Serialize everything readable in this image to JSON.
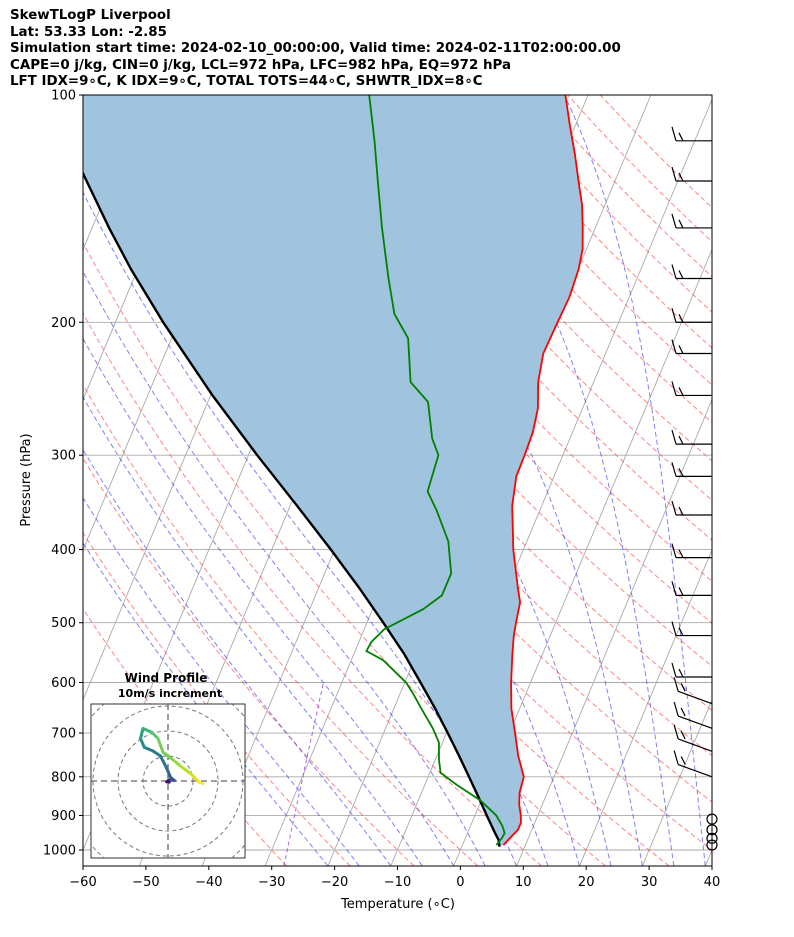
{
  "title_lines": [
    "SkewTLogP Liverpool",
    "Lat: 53.33   Lon: -2.85",
    "Simulation start time: 2024-02-10_00:00:00, Valid time: 2024-02-11T02:00:00.00",
    "CAPE=0 j/kg, CIN=0 j/kg, LCL=972 hPa, LFC=982 hPa, EQ=972 hPa",
    "LFT IDX=9∘C, K IDX=9∘C, TOTAL TOTS=44∘C, SHWTR_IDX=8∘C"
  ],
  "chart_data": {
    "type": "line",
    "subtype": "skew-T log-P diagram",
    "xlabel": "Temperature (∘C)",
    "ylabel": "Pressure (hPa)",
    "xlim": [
      -60,
      40
    ],
    "ylim": [
      1050,
      100
    ],
    "x_ticks": [
      -60,
      -50,
      -40,
      -30,
      -20,
      -10,
      0,
      10,
      20,
      30,
      40
    ],
    "x_tick_labels": [
      "−60",
      "−50",
      "−40",
      "−30",
      "−20",
      "−10",
      "0",
      "10",
      "20",
      "30",
      "40"
    ],
    "y_ticks": [
      1000,
      900,
      800,
      700,
      600,
      500,
      400,
      300,
      200,
      100
    ],
    "y_tick_labels": [
      "1000",
      "900",
      "800",
      "700",
      "600",
      "500",
      "400",
      "300",
      "200",
      "100"
    ],
    "skew_deg_per_decade": 50.3,
    "colors": {
      "temperature": "#ff0000",
      "dewpoint": "#008000",
      "parcel": "#000000",
      "fill": "#a0c4de",
      "dry_adiabat": "#ff4444",
      "moist_adiabat": "#3344ee",
      "mixing_ratio": "#8a2be2",
      "isotherm": "#aaaaaa",
      "isobar": "#aaaaaa"
    },
    "series": [
      {
        "name": "Temperature",
        "pressure": [
          985,
          960,
          940,
          920,
          900,
          870,
          840,
          800,
          750,
          700,
          650,
          600,
          550,
          520,
          500,
          470,
          450,
          400,
          350,
          320,
          300,
          280,
          260,
          240,
          220,
          200,
          185,
          170,
          160,
          150,
          140,
          130,
          120,
          110,
          100
        ],
        "temp": [
          6.5,
          7.2,
          7.8,
          7.8,
          7.3,
          6.3,
          5.6,
          5.2,
          2.9,
          0.9,
          -1.3,
          -3.1,
          -4.8,
          -5.8,
          -6.3,
          -7.0,
          -8.3,
          -11.6,
          -14.7,
          -16.0,
          -16.1,
          -16.3,
          -17.1,
          -18.8,
          -19.9,
          -19.7,
          -19.5,
          -19.9,
          -20.6,
          -22.0,
          -23.6,
          -25.8,
          -28.1,
          -30.8,
          -33.6
        ]
      },
      {
        "name": "Dewpoint",
        "pressure": [
          985,
          965,
          950,
          930,
          900,
          860,
          820,
          790,
          760,
          720,
          690,
          650,
          620,
          600,
          560,
          545,
          530,
          510,
          480,
          460,
          430,
          390,
          355,
          335,
          300,
          285,
          255,
          240,
          210,
          195,
          175,
          150,
          130,
          115,
          100
        ],
        "temp": [
          5.4,
          5.8,
          5.9,
          5.1,
          3.4,
          -0.1,
          -4.9,
          -8.3,
          -9.4,
          -10.6,
          -12.5,
          -15.6,
          -18.0,
          -19.8,
          -25.0,
          -28.2,
          -28.0,
          -26.8,
          -22.0,
          -19.9,
          -19.9,
          -22.5,
          -26.4,
          -29.1,
          -29.8,
          -31.9,
          -35.0,
          -39.1,
          -42.4,
          -46.2,
          -49.5,
          -53.9,
          -57.7,
          -60.9,
          -64.8
        ]
      },
      {
        "name": "Parcel",
        "pressure": [
          990,
          970,
          950,
          900,
          850,
          800,
          750,
          700,
          650,
          600,
          550,
          500,
          450,
          400,
          350,
          300,
          250,
          200,
          170,
          150,
          130,
          115,
          100
        ],
        "temp": [
          6.0,
          5.4,
          4.4,
          1.9,
          -0.7,
          -3.5,
          -6.5,
          -9.8,
          -13.4,
          -17.5,
          -22.0,
          -27.4,
          -33.5,
          -40.6,
          -48.9,
          -58.6,
          -69.7,
          -82.4,
          -91.1,
          -97.3,
          -104.0,
          -109.7,
          -116.0
        ]
      }
    ],
    "wind_barbs": [
      {
        "pressure": 985,
        "symbol": "calm"
      },
      {
        "pressure": 965,
        "symbol": "calm"
      },
      {
        "pressure": 940,
        "symbol": "calm"
      },
      {
        "pressure": 910,
        "symbol": "calm"
      },
      {
        "pressure": 800,
        "symbol": "barb"
      },
      {
        "pressure": 740,
        "symbol": "barb"
      },
      {
        "pressure": 690,
        "symbol": "barb"
      },
      {
        "pressure": 640,
        "symbol": "barb"
      },
      {
        "pressure": 590,
        "symbol": "barb"
      },
      {
        "pressure": 520,
        "symbol": "barb"
      },
      {
        "pressure": 460,
        "symbol": "barb"
      },
      {
        "pressure": 410,
        "symbol": "barb"
      },
      {
        "pressure": 360,
        "symbol": "barb"
      },
      {
        "pressure": 320,
        "symbol": "barb"
      },
      {
        "pressure": 290,
        "symbol": "barb"
      },
      {
        "pressure": 250,
        "symbol": "barb"
      },
      {
        "pressure": 220,
        "symbol": "barb"
      },
      {
        "pressure": 200,
        "symbol": "barb"
      },
      {
        "pressure": 175,
        "symbol": "barb"
      },
      {
        "pressure": 150,
        "symbol": "barb"
      },
      {
        "pressure": 130,
        "symbol": "barb"
      },
      {
        "pressure": 115,
        "symbol": "barb"
      }
    ],
    "hodograph": {
      "title": "Wind Profile",
      "subtitle": "10m/s increment",
      "ring_increment_ms": 10,
      "rings": 4,
      "points_u_v": [
        [
          0.5,
          -0.5
        ],
        [
          -0.5,
          -0.3
        ],
        [
          1.0,
          0.5
        ],
        [
          2.5,
          0.2
        ],
        [
          1.0,
          1.5
        ],
        [
          -0.5,
          5.0
        ],
        [
          -3.0,
          10.0
        ],
        [
          -6.0,
          12.0
        ],
        [
          -9.5,
          13.5
        ],
        [
          -11.0,
          17.0
        ],
        [
          -10.0,
          21.0
        ],
        [
          -6.5,
          19.5
        ],
        [
          -4.0,
          17.0
        ],
        [
          -2.0,
          11.5
        ],
        [
          2.0,
          8.5
        ],
        [
          5.0,
          6.0
        ],
        [
          9.0,
          3.0
        ],
        [
          11.0,
          1.0
        ],
        [
          12.5,
          -0.5
        ],
        [
          14.0,
          -1.0
        ]
      ]
    }
  }
}
